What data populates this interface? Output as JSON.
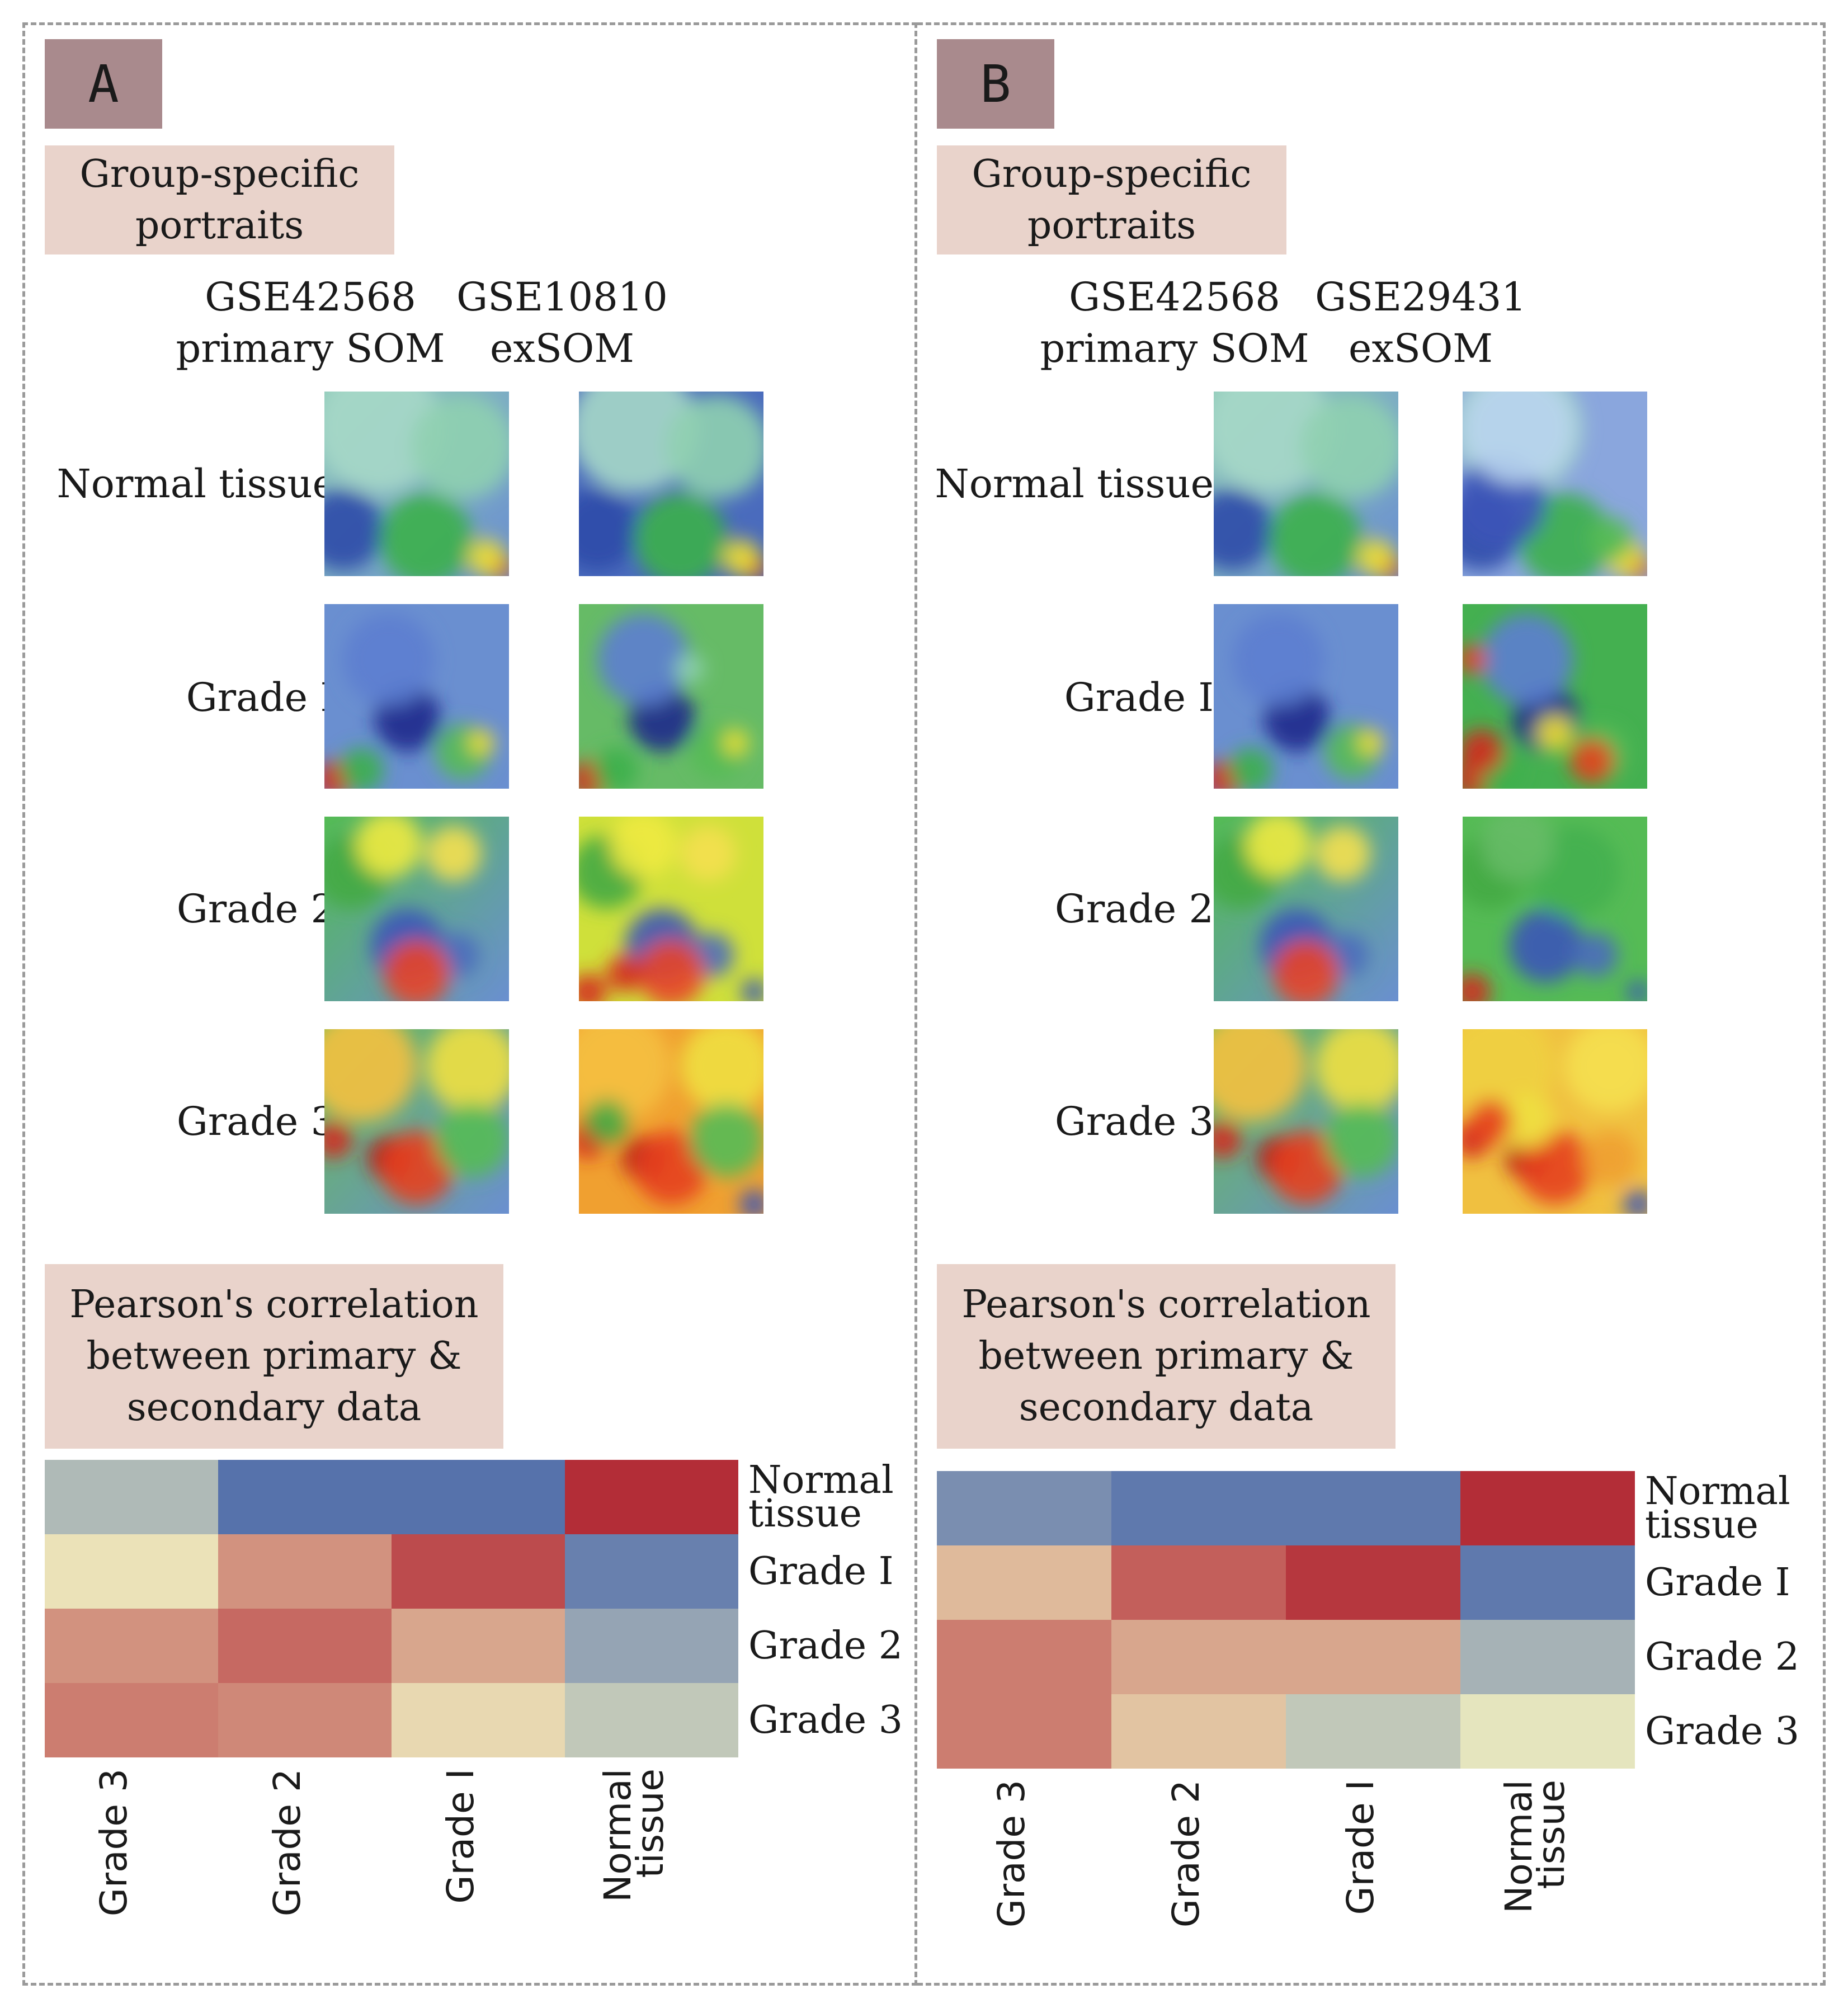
{
  "panels": [
    {
      "letter": "A",
      "portraits_heading": "Group-specific\nportraits",
      "col1": "GSE42568\nprimary SOM",
      "col2": "GSE10810\nexSOM",
      "groups": [
        "Normal tissue",
        "Grade I",
        "Grade 2",
        "Grade 3"
      ],
      "correlation_heading": "Pearson's correlation\nbetween primary &\nsecondary data"
    },
    {
      "letter": "B",
      "portraits_heading": "Group-specific\nportraits",
      "col1": "GSE42568\nprimary SOM",
      "col2": "GSE29431\nexSOM",
      "groups": [
        "Normal tissue",
        "Grade I",
        "Grade 2",
        "Grade 3"
      ],
      "correlation_heading": "Pearson's correlation\nbetween primary &\nsecondary data"
    }
  ],
  "chart_data": [
    {
      "type": "heatmap",
      "title": "Pearson's correlation between primary & secondary data (A: GSE42568 vs GSE10810)",
      "rows": [
        "Normal\ntissue",
        "Grade I",
        "Grade 2",
        "Grade 3"
      ],
      "columns": [
        "Grade 3",
        "Grade 2",
        "Grade I",
        "Normal\ntissue"
      ],
      "values": [
        [
          -0.35,
          -0.85,
          -0.85,
          0.95
        ],
        [
          0.05,
          0.45,
          0.8,
          -0.75
        ],
        [
          0.45,
          0.65,
          0.35,
          -0.5
        ],
        [
          0.55,
          0.5,
          0.1,
          -0.25
        ]
      ],
      "value_range": [
        -1,
        1
      ],
      "colors": {
        "low": "#3b5ca8",
        "mid": "#eeecbf",
        "high": "#b02330"
      }
    },
    {
      "type": "heatmap",
      "title": "Pearson's correlation between primary & secondary data (B: GSE42568 vs GSE29431)",
      "rows": [
        "Normal\ntissue",
        "Grade I",
        "Grade 2",
        "Grade 3"
      ],
      "columns": [
        "Grade 3",
        "Grade 2",
        "Grade I",
        "Normal\ntissue"
      ],
      "values": [
        [
          -0.65,
          -0.8,
          -0.8,
          0.95
        ],
        [
          0.25,
          0.7,
          0.9,
          -0.8
        ],
        [
          0.55,
          0.35,
          0.35,
          -0.4
        ],
        [
          0.55,
          0.2,
          -0.25,
          -0.05
        ]
      ],
      "value_range": [
        -1,
        1
      ],
      "colors": {
        "low": "#3b5ca8",
        "mid": "#eeecbf",
        "high": "#b02330"
      }
    }
  ]
}
